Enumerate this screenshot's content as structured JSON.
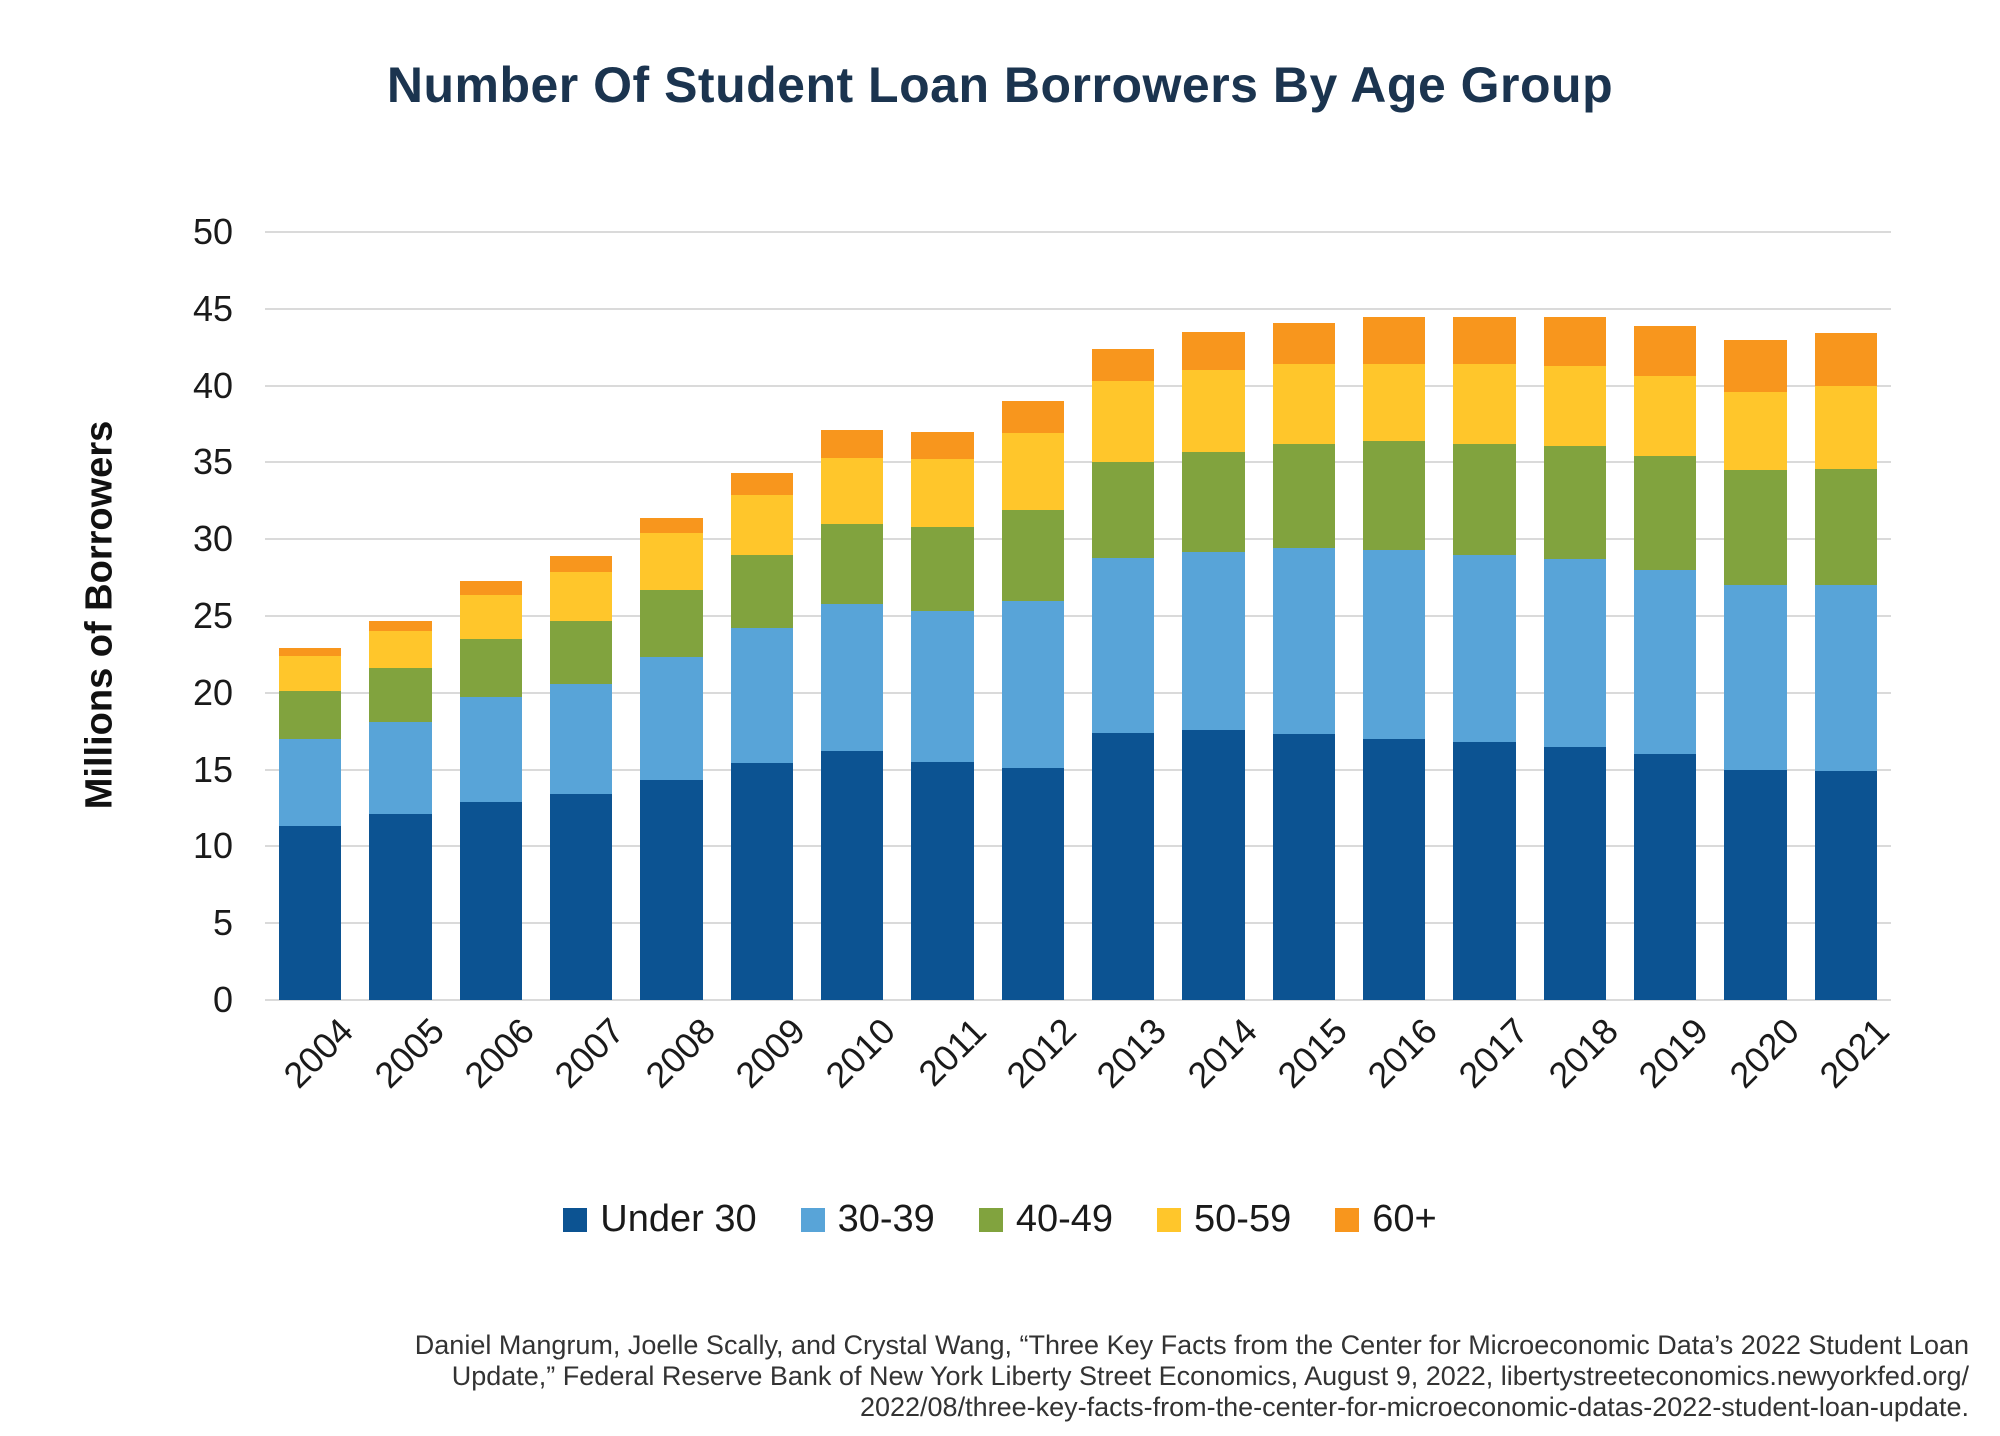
{
  "title": "Number Of Student Loan Borrowers By Age Group",
  "colors": {
    "title_text": "#1B344F",
    "axis_text": "#1A1A1A",
    "gridline": "#DADADA",
    "caption_text": "#333333"
  },
  "chart_data": {
    "type": "bar",
    "stacked": true,
    "title": "Number Of Student Loan Borrowers By Age Group",
    "xlabel": "",
    "ylabel": "Millions of Borrowers",
    "ylim": [
      0,
      50
    ],
    "yticks": [
      0,
      5,
      10,
      15,
      20,
      25,
      30,
      35,
      40,
      45,
      50
    ],
    "grid": "horizontal",
    "legend_position": "bottom",
    "categories": [
      "2004",
      "2005",
      "2006",
      "2007",
      "2008",
      "2009",
      "2010",
      "2011",
      "2012",
      "2013",
      "2014",
      "2015",
      "2016",
      "2017",
      "2018",
      "2019",
      "2020",
      "2021"
    ],
    "series": [
      {
        "name": "Under 30",
        "color": "#0C5392",
        "values": [
          11.3,
          12.1,
          12.9,
          13.4,
          14.3,
          15.4,
          16.2,
          15.5,
          15.1,
          17.4,
          17.6,
          17.3,
          17.0,
          16.8,
          16.5,
          16.0,
          15.0,
          14.9
        ]
      },
      {
        "name": "30-39",
        "color": "#58A4D8",
        "values": [
          5.7,
          6.0,
          6.8,
          7.2,
          8.0,
          8.8,
          9.6,
          9.8,
          10.9,
          11.4,
          11.6,
          12.1,
          12.3,
          12.2,
          12.2,
          12.0,
          12.0,
          12.1
        ]
      },
      {
        "name": "40-49",
        "color": "#81A33E",
        "values": [
          3.1,
          3.5,
          3.8,
          4.1,
          4.4,
          4.8,
          5.2,
          5.5,
          5.9,
          6.2,
          6.5,
          6.8,
          7.1,
          7.2,
          7.4,
          7.4,
          7.5,
          7.6
        ]
      },
      {
        "name": "50-59",
        "color": "#FFC62B",
        "values": [
          2.3,
          2.4,
          2.9,
          3.2,
          3.7,
          3.9,
          4.3,
          4.4,
          5.0,
          5.3,
          5.3,
          5.2,
          5.0,
          5.2,
          5.2,
          5.2,
          5.1,
          5.4
        ]
      },
      {
        "name": "60+",
        "color": "#F8961D",
        "values": [
          0.5,
          0.7,
          0.9,
          1.0,
          1.0,
          1.4,
          1.8,
          1.8,
          2.1,
          2.1,
          2.5,
          2.7,
          3.1,
          3.1,
          3.2,
          3.3,
          3.4,
          3.4
        ]
      }
    ],
    "totals": [
      22.9,
      24.7,
      27.3,
      28.9,
      31.4,
      34.3,
      37.1,
      37.0,
      39.0,
      42.4,
      43.5,
      44.1,
      44.5,
      44.5,
      44.5,
      43.9,
      43.0,
      43.4
    ]
  },
  "caption": {
    "lines": [
      "Daniel Mangrum, Joelle Scally, and Crystal Wang, “Three Key Facts from the Center for Microeconomic Data’s 2022 Student Loan",
      "Update,” Federal Reserve Bank of New York Liberty Street Economics, August 9, 2022, libertystreeteconomics.newyorkfed.org/",
      "2022/08/three-key-facts-from-the-center-for-microeconomic-datas-2022-student-loan-update."
    ]
  }
}
